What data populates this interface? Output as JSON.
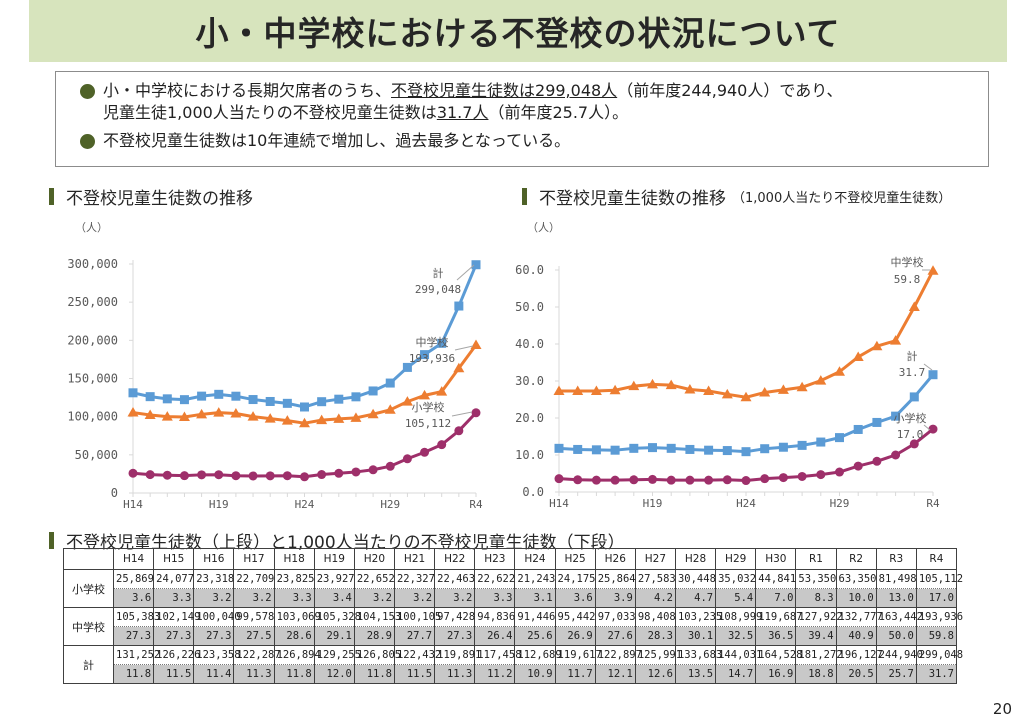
{
  "title": "小・中学校における不登校の状況について",
  "summary": {
    "bullet1": {
      "part1": "小・中学校における長期欠席者のうち、",
      "underline1": "不登校児童生徒数は299,048人",
      "part2": "（前年度244,940人）であり、",
      "part3": "児童生徒1,000人当たりの不登校児童生徒数は",
      "underline2": "31.7人",
      "part4": "（前年度25.7人）。"
    },
    "bullet2": "不登校児童生徒数は10年連続で増加し、過去最多となっている。"
  },
  "sections": {
    "chart1_heading": "不登校児童生徒数の推移",
    "chart2_heading": "不登校児童生徒数の推移",
    "chart2_subheading": "（1,000人当たり不登校児童生徒数）",
    "table_heading": "不登校児童生徒数（上段）と1,000人当たりの不登校児童生徒数（下段）"
  },
  "colors": {
    "banner": "#d7e4bd",
    "accent": "#4f6228",
    "total": "#5b9bd5",
    "junior_high": "#ed7d31",
    "elementary": "#9e2f6a"
  },
  "chart_data": [
    {
      "type": "line",
      "title": "不登校児童生徒数の推移",
      "ylabel": "（人）",
      "xlabel": "",
      "ylim": [
        0,
        300000
      ],
      "yticks": [
        "300,000",
        "250,000",
        "200,000",
        "150,000",
        "100,000",
        "50,000",
        "0"
      ],
      "ytick_values": [
        300000,
        250000,
        200000,
        150000,
        100000,
        50000,
        0
      ],
      "x": [
        "H14",
        "H15",
        "H16",
        "H17",
        "H18",
        "H19",
        "H20",
        "H21",
        "H22",
        "H23",
        "H24",
        "H25",
        "H26",
        "H27",
        "H28",
        "H29",
        "H30",
        "R1",
        "R2",
        "R3",
        "R4"
      ],
      "xtick_labels": [
        "H14",
        "H19",
        "H24",
        "H29",
        "R4"
      ],
      "grid": false,
      "series": [
        {
          "name": "計",
          "marker": "square",
          "values": [
            131252,
            126226,
            123358,
            122287,
            126894,
            129255,
            126805,
            122432,
            119891,
            117458,
            112689,
            119617,
            122897,
            125991,
            133683,
            144031,
            164528,
            181272,
            196127,
            244940,
            299048
          ],
          "annotation": [
            "計",
            "299,048"
          ]
        },
        {
          "name": "中学校",
          "marker": "triangle",
          "values": [
            105383,
            102149,
            100040,
            99578,
            103069,
            105328,
            104153,
            100105,
            97428,
            94836,
            91446,
            95442,
            97033,
            98408,
            103235,
            108999,
            119687,
            127922,
            132777,
            163442,
            193936
          ],
          "annotation": [
            "中学校",
            "193,936"
          ]
        },
        {
          "name": "小学校",
          "marker": "circle",
          "values": [
            25869,
            24077,
            23318,
            22709,
            23825,
            23927,
            22652,
            22327,
            22463,
            22622,
            21243,
            24175,
            25864,
            27583,
            30448,
            35032,
            44841,
            53350,
            63350,
            81498,
            105112
          ],
          "annotation": [
            "小学校",
            "105,112"
          ]
        }
      ]
    },
    {
      "type": "line",
      "title": "不登校児童生徒数の推移（1,000人当たり不登校児童生徒数）",
      "ylabel": "（人）",
      "xlabel": "",
      "ylim": [
        0,
        60
      ],
      "yticks": [
        "60.0",
        "50.0",
        "40.0",
        "30.0",
        "20.0",
        "10.0",
        "0.0"
      ],
      "ytick_values": [
        60,
        50,
        40,
        30,
        20,
        10,
        0
      ],
      "x": [
        "H14",
        "H15",
        "H16",
        "H17",
        "H18",
        "H19",
        "H20",
        "H21",
        "H22",
        "H23",
        "H24",
        "H25",
        "H26",
        "H27",
        "H28",
        "H29",
        "H30",
        "R1",
        "R2",
        "R3",
        "R4"
      ],
      "xtick_labels": [
        "H14",
        "H19",
        "H24",
        "H29",
        "R4"
      ],
      "grid": false,
      "series": [
        {
          "name": "中学校",
          "marker": "triangle",
          "values": [
            27.3,
            27.3,
            27.3,
            27.5,
            28.6,
            29.1,
            28.9,
            27.7,
            27.3,
            26.4,
            25.6,
            26.9,
            27.6,
            28.3,
            30.1,
            32.5,
            36.5,
            39.4,
            40.9,
            50.0,
            59.8
          ],
          "annotation": [
            "中学校",
            "59.8"
          ]
        },
        {
          "name": "計",
          "marker": "square",
          "values": [
            11.8,
            11.5,
            11.4,
            11.3,
            11.8,
            12.0,
            11.8,
            11.5,
            11.3,
            11.2,
            10.9,
            11.7,
            12.1,
            12.6,
            13.5,
            14.7,
            16.9,
            18.8,
            20.5,
            25.7,
            31.7
          ],
          "annotation": [
            "計",
            "31.7"
          ]
        },
        {
          "name": "小学校",
          "marker": "circle",
          "values": [
            3.6,
            3.3,
            3.2,
            3.2,
            3.3,
            3.4,
            3.2,
            3.2,
            3.2,
            3.3,
            3.1,
            3.6,
            3.9,
            4.2,
            4.7,
            5.4,
            7.0,
            8.3,
            10.0,
            13.0,
            17.0
          ],
          "annotation": [
            "小学校",
            "17.0"
          ]
        }
      ]
    }
  ],
  "table": {
    "headers": [
      "",
      "H14",
      "H15",
      "H16",
      "H17",
      "H18",
      "H19",
      "H20",
      "H21",
      "H22",
      "H23",
      "H24",
      "H25",
      "H26",
      "H27",
      "H28",
      "H29",
      "H30",
      "R1",
      "R2",
      "R3",
      "R4"
    ],
    "rows": [
      {
        "label": "小学校",
        "counts": [
          "25,869",
          "24,077",
          "23,318",
          "22,709",
          "23,825",
          "23,927",
          "22,652",
          "22,327",
          "22,463",
          "22,622",
          "21,243",
          "24,175",
          "25,864",
          "27,583",
          "30,448",
          "35,032",
          "44,841",
          "53,350",
          "63,350",
          "81,498",
          "105,112"
        ],
        "rates": [
          "3.6",
          "3.3",
          "3.2",
          "3.2",
          "3.3",
          "3.4",
          "3.2",
          "3.2",
          "3.2",
          "3.3",
          "3.1",
          "3.6",
          "3.9",
          "4.2",
          "4.7",
          "5.4",
          "7.0",
          "8.3",
          "10.0",
          "13.0",
          "17.0"
        ]
      },
      {
        "label": "中学校",
        "counts": [
          "105,383",
          "102,149",
          "100,040",
          "99,578",
          "103,069",
          "105,328",
          "104,153",
          "100,105",
          "97,428",
          "94,836",
          "91,446",
          "95,442",
          "97,033",
          "98,408",
          "103,235",
          "108,999",
          "119,687",
          "127,922",
          "132,777",
          "163,442",
          "193,936"
        ],
        "rates": [
          "27.3",
          "27.3",
          "27.3",
          "27.5",
          "28.6",
          "29.1",
          "28.9",
          "27.7",
          "27.3",
          "26.4",
          "25.6",
          "26.9",
          "27.6",
          "28.3",
          "30.1",
          "32.5",
          "36.5",
          "39.4",
          "40.9",
          "50.0",
          "59.8"
        ]
      },
      {
        "label": "計",
        "counts": [
          "131,252",
          "126,226",
          "123,358",
          "122,287",
          "126,894",
          "129,255",
          "126,805",
          "122,432",
          "119,891",
          "117,458",
          "112,689",
          "119,617",
          "122,897",
          "125,991",
          "133,683",
          "144,031",
          "164,528",
          "181,272",
          "196,127",
          "244,940",
          "299,048"
        ],
        "rates": [
          "11.8",
          "11.5",
          "11.4",
          "11.3",
          "11.8",
          "12.0",
          "11.8",
          "11.5",
          "11.3",
          "11.2",
          "10.9",
          "11.7",
          "12.1",
          "12.6",
          "13.5",
          "14.7",
          "16.9",
          "18.8",
          "20.5",
          "25.7",
          "31.7"
        ]
      }
    ]
  },
  "page_number": "20"
}
